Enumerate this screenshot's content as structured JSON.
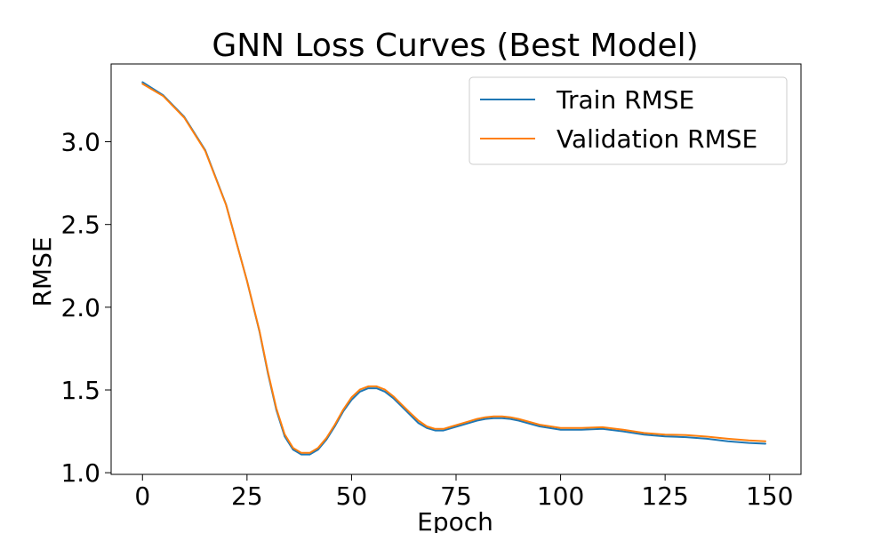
{
  "chart_data": {
    "type": "line",
    "title": "GNN Loss Curves (Best Model)",
    "xlabel": "Epoch",
    "ylabel": "RMSE",
    "xlim": [
      -7.5,
      157.5
    ],
    "ylim": [
      0.99,
      3.47
    ],
    "xticks": [
      0,
      25,
      50,
      75,
      100,
      125,
      150
    ],
    "xtick_labels": [
      "0",
      "25",
      "50",
      "75",
      "100",
      "125",
      "150"
    ],
    "yticks": [
      1.0,
      1.5,
      2.0,
      2.5,
      3.0
    ],
    "ytick_labels": [
      "1.0",
      "1.5",
      "2.0",
      "2.5",
      "3.0"
    ],
    "grid": false,
    "legend_position": "upper right",
    "series": [
      {
        "name": "Train RMSE",
        "color": "#1f77b4",
        "x": [
          0,
          5,
          10,
          15,
          20,
          25,
          28,
          30,
          32,
          34,
          36,
          38,
          40,
          42,
          44,
          46,
          48,
          50,
          52,
          54,
          56,
          58,
          60,
          62,
          64,
          66,
          68,
          70,
          72,
          74,
          76,
          78,
          80,
          82,
          84,
          86,
          88,
          90,
          95,
          100,
          105,
          110,
          115,
          120,
          125,
          130,
          135,
          140,
          145,
          149
        ],
        "y": [
          3.36,
          3.28,
          3.15,
          2.95,
          2.62,
          2.16,
          1.85,
          1.6,
          1.38,
          1.22,
          1.14,
          1.11,
          1.11,
          1.14,
          1.2,
          1.28,
          1.37,
          1.44,
          1.49,
          1.51,
          1.51,
          1.49,
          1.45,
          1.4,
          1.35,
          1.3,
          1.27,
          1.255,
          1.255,
          1.27,
          1.285,
          1.3,
          1.315,
          1.325,
          1.33,
          1.33,
          1.325,
          1.315,
          1.28,
          1.26,
          1.26,
          1.265,
          1.25,
          1.23,
          1.22,
          1.215,
          1.205,
          1.19,
          1.18,
          1.175
        ]
      },
      {
        "name": "Validation RMSE",
        "color": "#ff7f0e",
        "x": [
          0,
          5,
          10,
          15,
          20,
          25,
          28,
          30,
          32,
          34,
          36,
          38,
          40,
          42,
          44,
          46,
          48,
          50,
          52,
          54,
          56,
          58,
          60,
          62,
          64,
          66,
          68,
          70,
          72,
          74,
          76,
          78,
          80,
          82,
          84,
          86,
          88,
          90,
          95,
          100,
          105,
          110,
          115,
          120,
          125,
          130,
          135,
          140,
          145,
          149
        ],
        "y": [
          3.35,
          3.275,
          3.145,
          2.945,
          2.618,
          2.16,
          1.855,
          1.608,
          1.39,
          1.232,
          1.15,
          1.12,
          1.12,
          1.15,
          1.21,
          1.29,
          1.38,
          1.455,
          1.502,
          1.522,
          1.522,
          1.502,
          1.462,
          1.412,
          1.362,
          1.315,
          1.28,
          1.265,
          1.265,
          1.28,
          1.295,
          1.31,
          1.325,
          1.335,
          1.34,
          1.34,
          1.335,
          1.325,
          1.29,
          1.27,
          1.27,
          1.275,
          1.26,
          1.24,
          1.23,
          1.228,
          1.218,
          1.205,
          1.195,
          1.19
        ]
      }
    ]
  }
}
